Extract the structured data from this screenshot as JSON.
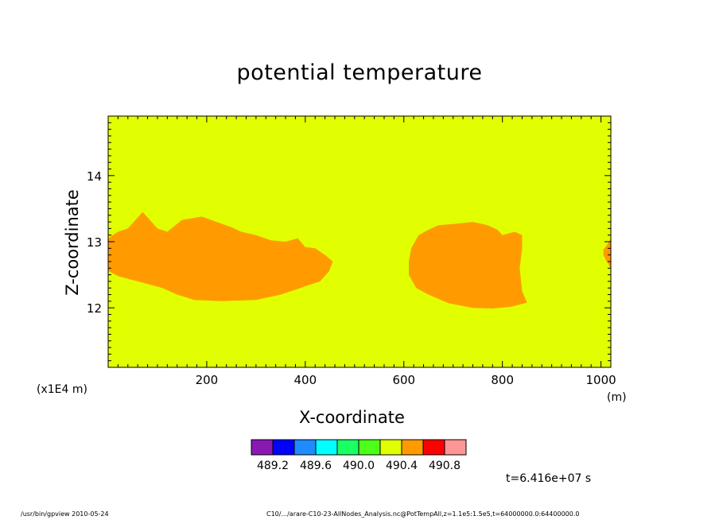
{
  "chart_data": {
    "type": "heatmap",
    "title": "potential temperature",
    "xlabel": "X-coordinate",
    "ylabel": "Z-coordinate",
    "x_unit": "(m)",
    "y_scale_label": "(x1E4 m)",
    "xlim": [
      0,
      1020
    ],
    "ylim": [
      11.1,
      14.9
    ],
    "x_ticks": [
      200,
      400,
      600,
      800,
      1000
    ],
    "y_ticks": [
      12,
      13,
      14
    ],
    "background_value_range": [
      490.0,
      490.4
    ],
    "regions": [
      {
        "name": "left-cell",
        "value_range": [
          490.4,
          490.8
        ],
        "boundary": [
          [
            0,
            12.56
          ],
          [
            20,
            12.48
          ],
          [
            60,
            12.4
          ],
          [
            110,
            12.3
          ],
          [
            140,
            12.2
          ],
          [
            175,
            12.12
          ],
          [
            230,
            12.1
          ],
          [
            300,
            12.12
          ],
          [
            350,
            12.2
          ],
          [
            390,
            12.3
          ],
          [
            430,
            12.4
          ],
          [
            448,
            12.55
          ],
          [
            456,
            12.7
          ],
          [
            440,
            12.8
          ],
          [
            420,
            12.9
          ],
          [
            400,
            12.92
          ],
          [
            385,
            13.05
          ],
          [
            360,
            13.0
          ],
          [
            330,
            13.02
          ],
          [
            300,
            13.1
          ],
          [
            270,
            13.15
          ],
          [
            250,
            13.22
          ],
          [
            220,
            13.3
          ],
          [
            190,
            13.38
          ],
          [
            150,
            13.33
          ],
          [
            120,
            13.15
          ],
          [
            100,
            13.2
          ],
          [
            70,
            13.45
          ],
          [
            40,
            13.2
          ],
          [
            20,
            13.15
          ],
          [
            0,
            13.05
          ]
        ]
      },
      {
        "name": "middle-cell",
        "value_range": [
          490.4,
          490.8
        ],
        "boundary": [
          [
            610,
            12.5
          ],
          [
            625,
            12.3
          ],
          [
            650,
            12.2
          ],
          [
            690,
            12.07
          ],
          [
            740,
            12.0
          ],
          [
            780,
            11.99
          ],
          [
            820,
            12.02
          ],
          [
            850,
            12.08
          ],
          [
            840,
            12.25
          ],
          [
            835,
            12.6
          ],
          [
            840,
            12.9
          ],
          [
            840,
            13.1
          ],
          [
            825,
            13.15
          ],
          [
            800,
            13.1
          ],
          [
            790,
            13.18
          ],
          [
            770,
            13.25
          ],
          [
            740,
            13.3
          ],
          [
            705,
            13.27
          ],
          [
            670,
            13.25
          ],
          [
            650,
            13.18
          ],
          [
            630,
            13.1
          ],
          [
            615,
            12.9
          ],
          [
            610,
            12.7
          ]
        ]
      },
      {
        "name": "right-edge-cell",
        "value_range": [
          490.4,
          490.8
        ],
        "boundary": [
          [
            1005,
            12.8
          ],
          [
            1010,
            12.72
          ],
          [
            1020,
            12.6
          ],
          [
            1020,
            13.05
          ],
          [
            1012,
            12.95
          ],
          [
            1005,
            12.88
          ]
        ]
      }
    ],
    "colorbar": {
      "colors": [
        "#8a19b3",
        "#0000ff",
        "#1e8cff",
        "#00ffff",
        "#19ff64",
        "#4bff19",
        "#e1ff00",
        "#ff9b00",
        "#ff0000",
        "#ff9696"
      ],
      "labels": [
        "489.2",
        "489.6",
        "490.0",
        "490.4",
        "490.8"
      ]
    },
    "grid": false,
    "legend": "bottom-center colorbar"
  },
  "time_label": "t=6.416e+07 s",
  "footer_left": "/usr/bin/gpview   2010-05-24",
  "footer_right": "C10/.../arare-C10-23-AllNodes_Analysis.nc@PotTempAll,z=1.1e5:1.5e5,t=64000000.0:64400000.0"
}
